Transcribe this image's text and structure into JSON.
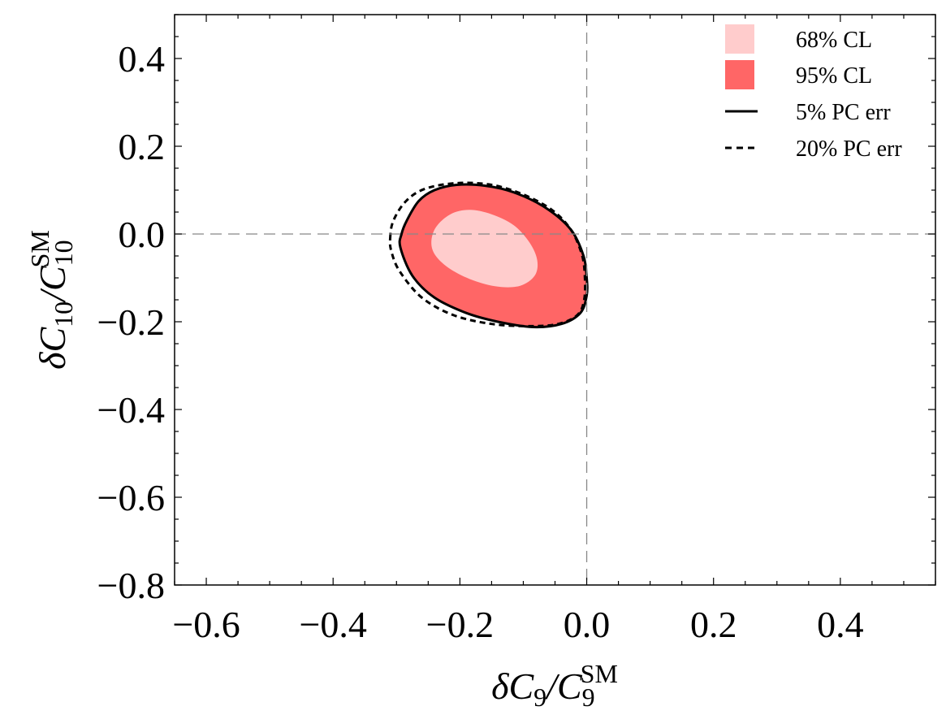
{
  "chart_data": {
    "type": "contour",
    "xlabel": {
      "prefix": "δC",
      "sub": "9",
      "mid": "/C",
      "sub2": "9",
      "sup2": "SM"
    },
    "ylabel": {
      "prefix": "δC",
      "sub": "10",
      "mid": "/C",
      "sub2": "10",
      "sup2": "SM"
    },
    "xlim": [
      -0.65,
      0.55
    ],
    "ylim": [
      -0.8,
      0.5
    ],
    "x_ticks": [
      -0.6,
      -0.4,
      -0.2,
      0.0,
      0.2,
      0.4
    ],
    "x_tick_labels": [
      "−0.6",
      "−0.4",
      "−0.2",
      "0.0",
      "0.2",
      "0.4"
    ],
    "y_ticks": [
      0.4,
      0.2,
      0.0,
      -0.2,
      -0.4,
      -0.6,
      -0.8
    ],
    "y_tick_labels": [
      "0.4",
      "0.2",
      "0.0",
      "−0.2",
      "−0.4",
      "−0.6",
      "−0.8"
    ],
    "reference_lines": {
      "x": 0.0,
      "y": 0.0,
      "style": "dashed",
      "color": "#888888"
    },
    "regions": [
      {
        "name": "95% CL",
        "fill": "#ff6666",
        "outline": "solid",
        "points": [
          [
            -0.294,
            -0.03
          ],
          [
            -0.292,
            0.0
          ],
          [
            -0.284,
            0.03
          ],
          [
            -0.265,
            0.075
          ],
          [
            -0.24,
            0.1
          ],
          [
            -0.205,
            0.112
          ],
          [
            -0.16,
            0.11
          ],
          [
            -0.115,
            0.095
          ],
          [
            -0.065,
            0.06
          ],
          [
            -0.025,
            0.01
          ],
          [
            -0.005,
            -0.05
          ],
          [
            0.0,
            -0.1
          ],
          [
            0.0,
            -0.14
          ],
          [
            -0.01,
            -0.18
          ],
          [
            -0.04,
            -0.205
          ],
          [
            -0.085,
            -0.212
          ],
          [
            -0.14,
            -0.2
          ],
          [
            -0.19,
            -0.18
          ],
          [
            -0.24,
            -0.145
          ],
          [
            -0.275,
            -0.095
          ]
        ]
      },
      {
        "name": "68% CL",
        "fill": "#ffcccc",
        "points": [
          [
            -0.245,
            -0.02
          ],
          [
            -0.238,
            0.015
          ],
          [
            -0.215,
            0.045
          ],
          [
            -0.185,
            0.055
          ],
          [
            -0.15,
            0.045
          ],
          [
            -0.115,
            0.02
          ],
          [
            -0.09,
            -0.02
          ],
          [
            -0.078,
            -0.06
          ],
          [
            -0.082,
            -0.095
          ],
          [
            -0.105,
            -0.118
          ],
          [
            -0.14,
            -0.12
          ],
          [
            -0.18,
            -0.105
          ],
          [
            -0.215,
            -0.08
          ],
          [
            -0.238,
            -0.05
          ]
        ]
      }
    ],
    "contours": [
      {
        "name": "20% PC err",
        "style": "dashed",
        "points": [
          [
            -0.31,
            -0.01
          ],
          [
            -0.305,
            0.03
          ],
          [
            -0.285,
            0.075
          ],
          [
            -0.255,
            0.103
          ],
          [
            -0.205,
            0.116
          ],
          [
            -0.15,
            0.112
          ],
          [
            -0.1,
            0.09
          ],
          [
            -0.055,
            0.055
          ],
          [
            -0.025,
            0.01
          ],
          [
            -0.008,
            -0.045
          ],
          [
            -0.003,
            -0.095
          ],
          [
            -0.004,
            -0.15
          ],
          [
            -0.015,
            -0.185
          ],
          [
            -0.045,
            -0.205
          ],
          [
            -0.09,
            -0.21
          ],
          [
            -0.15,
            -0.205
          ],
          [
            -0.21,
            -0.185
          ],
          [
            -0.26,
            -0.145
          ],
          [
            -0.295,
            -0.085
          ],
          [
            -0.308,
            -0.04
          ]
        ]
      }
    ],
    "legend": {
      "position": "top-right",
      "items": [
        {
          "label": "68% CL",
          "kind": "swatch",
          "color": "#ffcccc"
        },
        {
          "label": "95% CL",
          "kind": "swatch",
          "color": "#ff6666"
        },
        {
          "label": "5% PC err",
          "kind": "line",
          "style": "solid"
        },
        {
          "label": "20% PC err",
          "kind": "line",
          "style": "dashed"
        }
      ]
    }
  }
}
